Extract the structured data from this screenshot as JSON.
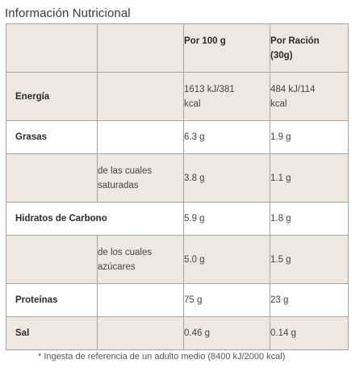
{
  "title": "Información Nutricional",
  "header": {
    "col_per100": "Por 100 g",
    "col_serving_line1": "Por Ración",
    "col_serving_line2": "(30g)"
  },
  "rows": [
    {
      "label": "Energía",
      "sub": "",
      "per100_line1": "1613 kJ/381",
      "per100_line2": "kcal",
      "serving_line1": "484 kJ/114",
      "serving_line2": "kcal"
    },
    {
      "label": "Grasas",
      "sub": "",
      "per100_line1": "6.3 g",
      "per100_line2": "",
      "serving_line1": "1.9 g",
      "serving_line2": ""
    },
    {
      "label": "",
      "sub_line1": "de las cuales",
      "sub_line2": "saturadas",
      "per100_line1": "3.8 g",
      "per100_line2": "",
      "serving_line1": "1.1 g",
      "serving_line2": ""
    },
    {
      "label": "Hidratos de Carbono",
      "sub": "",
      "per100_line1": "5.9 g",
      "per100_line2": "",
      "serving_line1": "1.8 g",
      "serving_line2": ""
    },
    {
      "label": "",
      "sub_line1": "de los cuales",
      "sub_line2": "azúcares",
      "per100_line1": "5.0 g",
      "per100_line2": "",
      "serving_line1": "1.5 g",
      "serving_line2": ""
    },
    {
      "label": "Proteínas",
      "sub": "",
      "per100_line1": "75 g",
      "per100_line2": "",
      "serving_line1": "23 g",
      "serving_line2": ""
    },
    {
      "label": "Sal",
      "sub": "",
      "per100_line1": "0.46 g",
      "per100_line2": "",
      "serving_line1": "0.14 g",
      "serving_line2": ""
    }
  ],
  "footnote": "* Ingesta de referencia de un adulto medio (8400 kJ/2000 kcal)",
  "colors": {
    "shaded_row": "#eee8e1",
    "border": "#a8a39d"
  }
}
